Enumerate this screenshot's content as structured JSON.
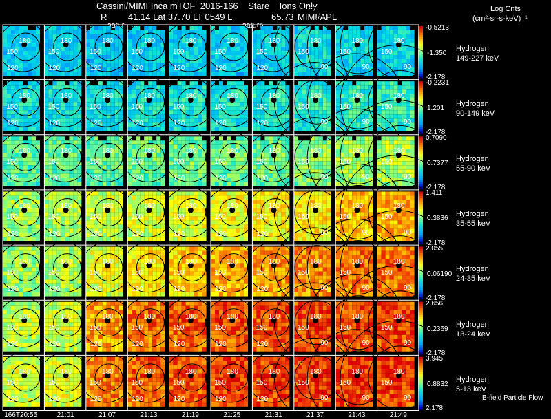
{
  "header": {
    "title": "Cassini/MIMI Inca mTOF  2016-166    Stare    Ions Only",
    "info_r": "R",
    "info_mid": "41.14 Lat 37.70 LT 0549 L",
    "info_l": "65.73",
    "info_src": "MIMI/APL",
    "saturn_a": "satur",
    "saturn_b": "saturn",
    "units_title": "Log Cnts",
    "units": "(cm²-sr-s-keV)⁻¹"
  },
  "chart_data": {
    "type": "heatmap",
    "title": "Cassini/MIMI Inca mTOF  2016-166    Stare    Ions Only",
    "colorscale": [
      "#0000c8",
      "#00a0ff",
      "#00e0e0",
      "#80ff80",
      "#ffff00",
      "#ff8000",
      "#e00000"
    ],
    "x_times": [
      "166T20:55",
      "21:01",
      "21:07",
      "21:13",
      "21:19",
      "21:25",
      "21:31",
      "21:37",
      "21:43",
      "21:49"
    ],
    "contour_labels": [
      "180",
      "150",
      "120",
      "90"
    ],
    "rows": [
      {
        "species": "Hydrogen",
        "energy": "149-227 keV",
        "max": "-0.5213",
        "mid": "-1.350",
        "min": "-2.178",
        "level": [
          0.3,
          0.3,
          0.28,
          0.3,
          0.32,
          0.3,
          0.32,
          0.34,
          0.33,
          0.32
        ]
      },
      {
        "species": "Hydrogen",
        "energy": "90-149 keV",
        "max": "-0.2231",
        "mid": "1.201",
        "min": "-2.178",
        "level": [
          0.36,
          0.36,
          0.35,
          0.36,
          0.38,
          0.37,
          0.38,
          0.4,
          0.4,
          0.42
        ]
      },
      {
        "species": "Hydrogen",
        "energy": "55-90 keV",
        "max": "0.7090",
        "mid": "0.7377",
        "min": "-2.178",
        "level": [
          0.46,
          0.48,
          0.48,
          0.48,
          0.5,
          0.5,
          0.5,
          0.54,
          0.56,
          0.58
        ]
      },
      {
        "species": "Hydrogen",
        "energy": "35-55 keV",
        "max": "1.411",
        "mid": "0.3836",
        "min": "-2.178",
        "level": [
          0.56,
          0.58,
          0.62,
          0.64,
          0.66,
          0.68,
          0.7,
          0.72,
          0.78,
          0.8
        ]
      },
      {
        "species": "Hydrogen",
        "energy": "24-35 keV",
        "max": "2.055",
        "mid": "0.06190",
        "min": "-2.178",
        "level": [
          0.56,
          0.58,
          0.66,
          0.72,
          0.76,
          0.8,
          0.82,
          0.84,
          0.88,
          0.88
        ]
      },
      {
        "species": "Hydrogen",
        "energy": "13-24 keV",
        "max": "2.656",
        "mid": "0.2369",
        "min": "-2.178",
        "level": [
          0.6,
          0.62,
          0.82,
          0.88,
          0.9,
          0.92,
          0.92,
          0.94,
          0.94,
          0.94
        ]
      },
      {
        "species": "Hydrogen",
        "energy": "5-13 keV",
        "max": "3.945",
        "mid": "0.8832",
        "min": "2.178",
        "level": [
          0.64,
          0.66,
          0.86,
          0.9,
          0.92,
          0.94,
          0.94,
          0.95,
          0.95,
          0.95
        ]
      }
    ]
  },
  "footer": {
    "bfield": "B-field Particle Flow"
  }
}
